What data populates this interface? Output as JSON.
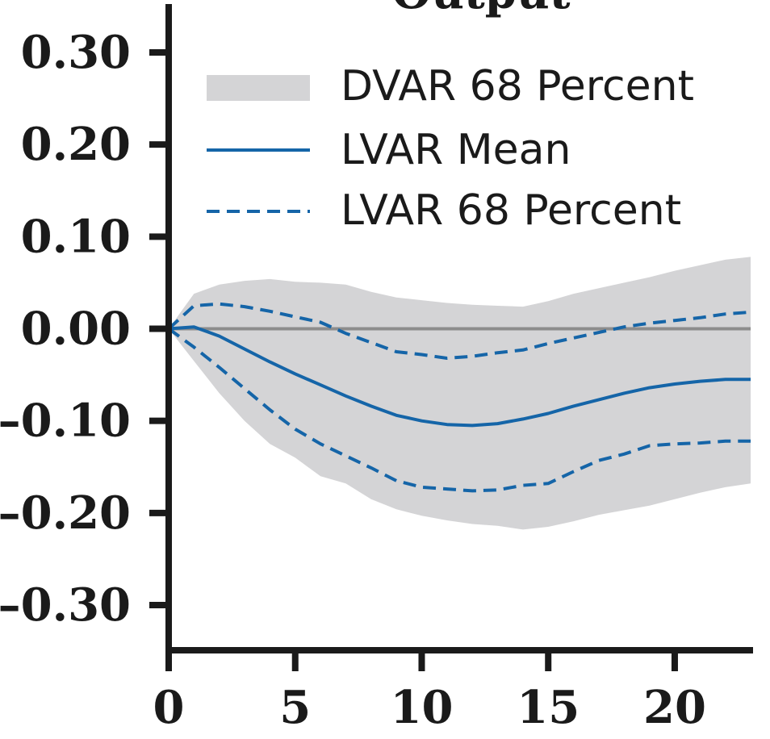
{
  "chart_data": {
    "type": "line",
    "title": "Output",
    "xlabel": "",
    "ylabel": "",
    "xlim": [
      0,
      23
    ],
    "ylim": [
      -0.3,
      0.3
    ],
    "x_ticks": [
      "0",
      "5",
      "10",
      "15",
      "20"
    ],
    "y_ticks": [
      "0.30",
      "0.20",
      "0.10",
      "0.00",
      "–0.10",
      "–0.20",
      "–0.30"
    ],
    "legend_position": "top-right",
    "x": [
      0,
      1,
      2,
      3,
      4,
      5,
      6,
      7,
      8,
      9,
      10,
      11,
      12,
      13,
      14,
      15,
      16,
      17,
      18,
      19,
      20,
      21,
      22,
      23
    ],
    "band": {
      "name": "DVAR 68 Percent",
      "color": "#d4d4d6",
      "upper": [
        0.0,
        0.038,
        0.048,
        0.052,
        0.054,
        0.051,
        0.05,
        0.048,
        0.04,
        0.034,
        0.031,
        0.028,
        0.026,
        0.025,
        0.024,
        0.03,
        0.038,
        0.044,
        0.05,
        0.056,
        0.063,
        0.069,
        0.075,
        0.078
      ],
      "lower": [
        0.0,
        -0.035,
        -0.07,
        -0.1,
        -0.125,
        -0.14,
        -0.16,
        -0.168,
        -0.185,
        -0.196,
        -0.203,
        -0.208,
        -0.212,
        -0.214,
        -0.218,
        -0.215,
        -0.209,
        -0.202,
        -0.197,
        -0.192,
        -0.185,
        -0.178,
        -0.172,
        -0.168
      ]
    },
    "series": [
      {
        "name": "LVAR Mean",
        "style": "solid",
        "color": "#1565a8",
        "values": [
          0.0,
          0.002,
          -0.008,
          -0.022,
          -0.036,
          -0.049,
          -0.061,
          -0.073,
          -0.084,
          -0.094,
          -0.1,
          -0.104,
          -0.105,
          -0.103,
          -0.098,
          -0.092,
          -0.084,
          -0.077,
          -0.07,
          -0.064,
          -0.06,
          -0.057,
          -0.055,
          -0.055
        ]
      },
      {
        "name": "LVAR 68 Percent",
        "style": "dashed",
        "color": "#1565a8",
        "values": [
          0.0,
          0.025,
          0.027,
          0.024,
          0.019,
          0.013,
          0.007,
          -0.005,
          -0.015,
          -0.025,
          -0.028,
          -0.032,
          -0.03,
          -0.026,
          -0.023,
          -0.016,
          -0.01,
          -0.004,
          0.002,
          0.006,
          0.009,
          0.012,
          0.016,
          0.018
        ]
      },
      {
        "name": "LVAR 68 Percent (lower)",
        "style": "dashed",
        "color": "#1565a8",
        "values": [
          0.0,
          -0.02,
          -0.042,
          -0.065,
          -0.088,
          -0.109,
          -0.125,
          -0.138,
          -0.151,
          -0.165,
          -0.172,
          -0.174,
          -0.176,
          -0.175,
          -0.17,
          -0.168,
          -0.155,
          -0.143,
          -0.136,
          -0.127,
          -0.125,
          -0.124,
          -0.122,
          -0.122
        ]
      }
    ],
    "zero_line_color": "#8c8c8c",
    "axis_color": "#1a1a1a"
  }
}
